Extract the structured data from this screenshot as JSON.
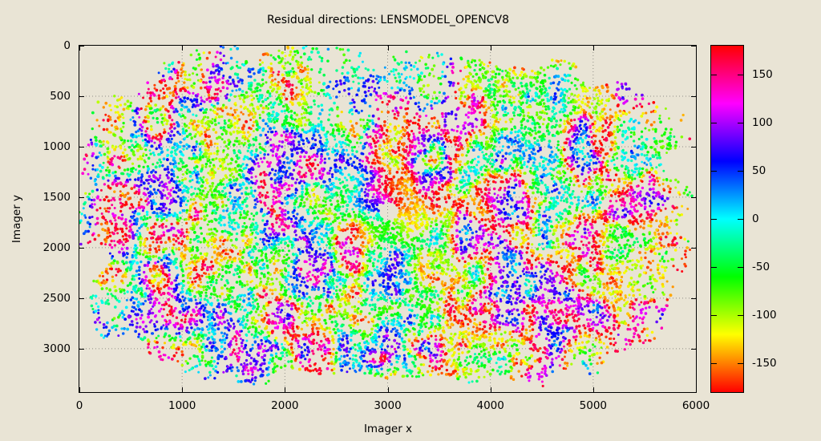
{
  "figure": {
    "title": "Residual directions: LENSMODEL_OPENCV8",
    "background": "#e9e4d5",
    "text_color": "#000000",
    "grid_color": "rgba(70,70,70,0.55)"
  },
  "chart_data": {
    "type": "scatter",
    "title": "Residual directions: LENSMODEL_OPENCV8",
    "xlabel": "Imager x",
    "ylabel": "Imager y",
    "xlim": [
      0,
      6000
    ],
    "ylim": [
      0,
      3430
    ],
    "y_axis_inverted": true,
    "x_ticks": [
      "0",
      "1000",
      "2000",
      "3000",
      "4000",
      "5000",
      "6000"
    ],
    "x_tick_values": [
      0,
      1000,
      2000,
      3000,
      4000,
      5000,
      6000
    ],
    "y_ticks": [
      "0",
      "500",
      "1000",
      "1500",
      "2000",
      "2500",
      "3000"
    ],
    "y_tick_values": [
      0,
      500,
      1000,
      1500,
      2000,
      2500,
      3000
    ],
    "grid": "dotted",
    "legend": "none",
    "colorbar": {
      "position": "right",
      "range": [
        -180,
        180
      ],
      "ticks": [
        "150",
        "100",
        "50",
        "0",
        "-50",
        "-100",
        "-150"
      ],
      "tick_values": [
        150,
        100,
        50,
        0,
        -50,
        -100,
        -150
      ],
      "palette": "hsv-hue wheel: hue_deg = value + 180, red at ±180, cyan at 0",
      "hue_offset": 180
    },
    "points": {
      "description": "Dense cloud of ~15000 small dots colored by residual direction angle; rounded-rectangle coverage of the imager with a sparse hole near (3010,1640) surrounded by a rainbow swirl; far from the hole hues form blotchy correlated noise.",
      "count_target": 15000,
      "attempts": 30000,
      "seed": 20240613,
      "marker_radius_px": [
        1.45,
        1.95
      ],
      "field": {
        "cx": 2940,
        "cy": 1700,
        "rx": 2870,
        "ry": 1670,
        "exponent": 3.0,
        "edge_noise": 0.35
      },
      "hole": {
        "cx": 3010,
        "cy": 1640,
        "r": 95,
        "ring_r": 300,
        "ring_boost": 1.9,
        "halo_r": 700,
        "halo_boost": 1.15,
        "center_keep": 0.04
      },
      "sparse_top": {
        "x0": 2250,
        "x1": 3750,
        "y1": 780,
        "factor": 0.5
      },
      "base_keep": 0.62,
      "edge_fade_start": 0.55,
      "edge_fade_amount": 0.55,
      "swirl": {
        "offset_deg": 180,
        "gain": 0.9,
        "blend_radius": 650,
        "noise_deg": 230,
        "jitter_deg": 40
      },
      "noise": {
        "scale1": 380,
        "scale2": 130,
        "w1": 1.0,
        "w2": 0.45
      }
    }
  }
}
